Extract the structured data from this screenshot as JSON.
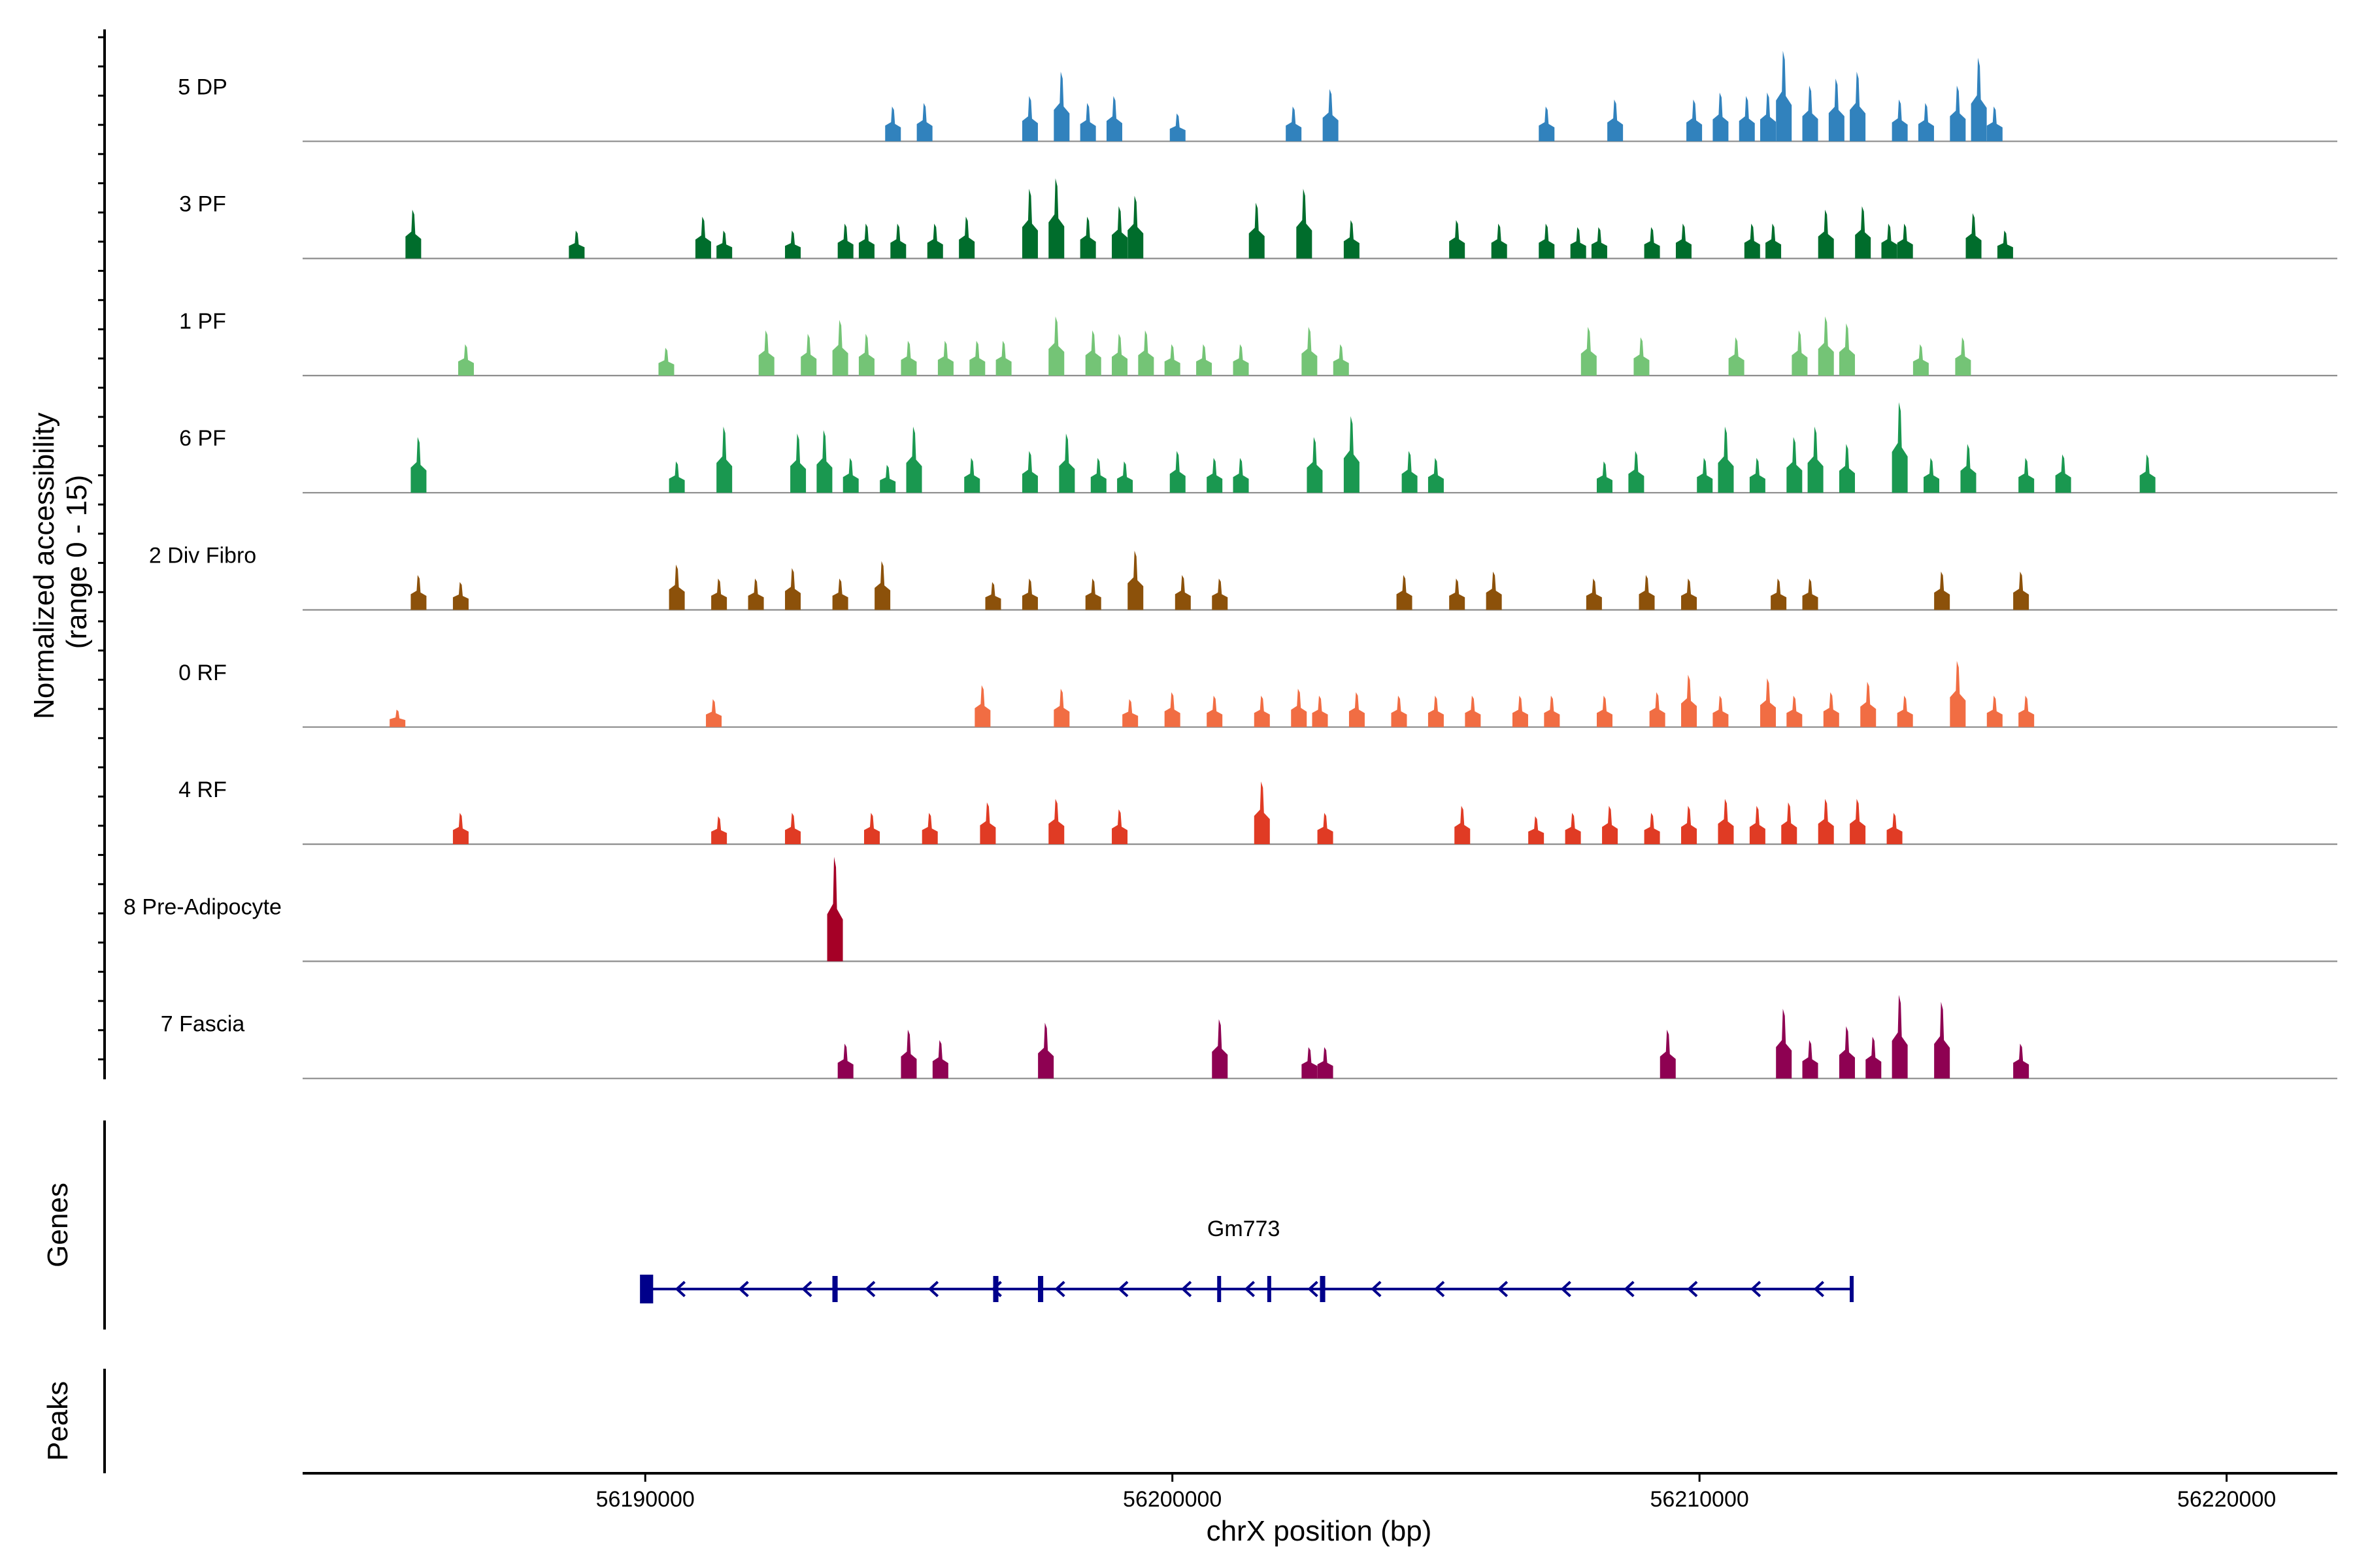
{
  "chart_data": {
    "type": "genome-coverage-tracks",
    "region": {
      "chrom": "chrX",
      "start": 56183500,
      "end": 56222100
    },
    "ylabel_lines": [
      "Normalized accessibility",
      "(range 0 - 15)"
    ],
    "y_range": [
      0,
      15
    ],
    "xlabel": "chrX position (bp)",
    "x_ticks": [
      56190000,
      56200000,
      56210000,
      56220000
    ],
    "x_tick_labels": [
      "56190000",
      "56200000",
      "56210000",
      "56220000"
    ],
    "tracks": [
      {
        "name": "5 DP",
        "color": "#3182bd",
        "peaks": [
          [
            56194700,
            5.0
          ],
          [
            56195300,
            5.5
          ],
          [
            56197300,
            6.5
          ],
          [
            56197900,
            10
          ],
          [
            56198400,
            5.5
          ],
          [
            56198900,
            6.5
          ],
          [
            56200100,
            4.0
          ],
          [
            56202300,
            5.0
          ],
          [
            56203000,
            7.5
          ],
          [
            56207100,
            5.0
          ],
          [
            56208400,
            6.0
          ],
          [
            56209900,
            6.0
          ],
          [
            56210400,
            7.0
          ],
          [
            56210900,
            6.5
          ],
          [
            56211300,
            7.0
          ],
          [
            56211600,
            13.0
          ],
          [
            56212100,
            8.0
          ],
          [
            56212600,
            9.0
          ],
          [
            56213000,
            10.0
          ],
          [
            56213800,
            6.0
          ],
          [
            56214300,
            5.5
          ],
          [
            56214900,
            8.0
          ],
          [
            56215300,
            12.0
          ],
          [
            56215600,
            5.0
          ]
        ]
      },
      {
        "name": "3 PF",
        "color": "#006d2c",
        "peaks": [
          [
            56185600,
            7.0
          ],
          [
            56188700,
            4.0
          ],
          [
            56191100,
            6.0
          ],
          [
            56191500,
            4.0
          ],
          [
            56192800,
            4.0
          ],
          [
            56193800,
            5.0
          ],
          [
            56194200,
            5.0
          ],
          [
            56194800,
            5.0
          ],
          [
            56195500,
            5.0
          ],
          [
            56196100,
            6.0
          ],
          [
            56197300,
            10.0
          ],
          [
            56197800,
            11.5
          ],
          [
            56198400,
            6.0
          ],
          [
            56199000,
            7.5
          ],
          [
            56199300,
            9.0
          ],
          [
            56201600,
            8.0
          ],
          [
            56202500,
            10.0
          ],
          [
            56203400,
            5.5
          ],
          [
            56205400,
            5.5
          ],
          [
            56206200,
            5.0
          ],
          [
            56207100,
            5.0
          ],
          [
            56207700,
            4.5
          ],
          [
            56208100,
            4.5
          ],
          [
            56209100,
            4.5
          ],
          [
            56209700,
            5.0
          ],
          [
            56211000,
            5.0
          ],
          [
            56211400,
            5.0
          ],
          [
            56212400,
            7.0
          ],
          [
            56213100,
            7.5
          ],
          [
            56213600,
            5.0
          ],
          [
            56213900,
            5.0
          ],
          [
            56215200,
            6.5
          ],
          [
            56215800,
            4.0
          ]
        ]
      },
      {
        "name": "1 PF",
        "color": "#74c476",
        "peaks": [
          [
            56186600,
            4.5
          ],
          [
            56190400,
            4.0
          ],
          [
            56192300,
            6.5
          ],
          [
            56193100,
            6.0
          ],
          [
            56193700,
            8.0
          ],
          [
            56194200,
            6.0
          ],
          [
            56195000,
            5.0
          ],
          [
            56195700,
            5.0
          ],
          [
            56196300,
            5.0
          ],
          [
            56196800,
            5.0
          ],
          [
            56197800,
            8.5
          ],
          [
            56198500,
            6.5
          ],
          [
            56199000,
            6.0
          ],
          [
            56199500,
            6.5
          ],
          [
            56200000,
            4.5
          ],
          [
            56200600,
            4.5
          ],
          [
            56201300,
            4.5
          ],
          [
            56202600,
            7.0
          ],
          [
            56203200,
            4.5
          ],
          [
            56207900,
            7.0
          ],
          [
            56208900,
            5.5
          ],
          [
            56210700,
            5.5
          ],
          [
            56211900,
            6.5
          ],
          [
            56212400,
            8.5
          ],
          [
            56212800,
            7.5
          ],
          [
            56214200,
            4.5
          ],
          [
            56215000,
            5.5
          ]
        ]
      },
      {
        "name": "6 PF",
        "color": "#1a9850",
        "peaks": [
          [
            56185700,
            8.0
          ],
          [
            56190600,
            4.5
          ],
          [
            56191500,
            9.5
          ],
          [
            56192900,
            8.5
          ],
          [
            56193400,
            9.0
          ],
          [
            56193900,
            5.0
          ],
          [
            56194600,
            4.0
          ],
          [
            56195100,
            9.5
          ],
          [
            56196200,
            5.0
          ],
          [
            56197300,
            6.0
          ],
          [
            56198000,
            8.5
          ],
          [
            56198600,
            5.0
          ],
          [
            56199100,
            4.5
          ],
          [
            56200100,
            6.0
          ],
          [
            56200800,
            5.0
          ],
          [
            56201300,
            5.0
          ],
          [
            56202700,
            8.0
          ],
          [
            56203400,
            11.0
          ],
          [
            56204500,
            6.0
          ],
          [
            56205000,
            5.0
          ],
          [
            56208200,
            4.5
          ],
          [
            56208800,
            6.0
          ],
          [
            56210100,
            5.0
          ],
          [
            56210500,
            9.5
          ],
          [
            56211100,
            5.0
          ],
          [
            56211800,
            8.0
          ],
          [
            56212200,
            9.5
          ],
          [
            56212800,
            7.0
          ],
          [
            56213800,
            13.0
          ],
          [
            56214400,
            5.0
          ],
          [
            56215100,
            7.0
          ],
          [
            56216200,
            5.0
          ],
          [
            56216900,
            5.5
          ],
          [
            56218500,
            5.5
          ]
        ]
      },
      {
        "name": "2 Div Fibro",
        "color": "#8c510a",
        "peaks": [
          [
            56185700,
            5.0
          ],
          [
            56186500,
            4.0
          ],
          [
            56190600,
            6.5
          ],
          [
            56191400,
            4.5
          ],
          [
            56192100,
            4.5
          ],
          [
            56192800,
            6.0
          ],
          [
            56193700,
            4.5
          ],
          [
            56194500,
            7.0
          ],
          [
            56196600,
            4.0
          ],
          [
            56197300,
            4.5
          ],
          [
            56198500,
            4.5
          ],
          [
            56199300,
            8.5
          ],
          [
            56200200,
            5.0
          ],
          [
            56200900,
            4.5
          ],
          [
            56204400,
            5.0
          ],
          [
            56205400,
            4.5
          ],
          [
            56206100,
            5.5
          ],
          [
            56208000,
            4.5
          ],
          [
            56209000,
            5.0
          ],
          [
            56209800,
            4.5
          ],
          [
            56211500,
            4.5
          ],
          [
            56212100,
            4.5
          ],
          [
            56214600,
            5.5
          ],
          [
            56216100,
            5.5
          ]
        ]
      },
      {
        "name": "0 RF",
        "color": "#f16d43",
        "peaks": [
          [
            56185300,
            2.5
          ],
          [
            56191300,
            4.0
          ],
          [
            56196400,
            6.0
          ],
          [
            56197900,
            5.5
          ],
          [
            56199200,
            4.0
          ],
          [
            56200000,
            5.0
          ],
          [
            56200800,
            4.5
          ],
          [
            56201700,
            4.5
          ],
          [
            56202400,
            5.5
          ],
          [
            56202800,
            4.5
          ],
          [
            56203500,
            5.0
          ],
          [
            56204300,
            4.5
          ],
          [
            56205000,
            4.5
          ],
          [
            56205700,
            4.5
          ],
          [
            56206600,
            4.5
          ],
          [
            56207200,
            4.5
          ],
          [
            56208200,
            4.5
          ],
          [
            56209200,
            5.0
          ],
          [
            56209800,
            7.5
          ],
          [
            56210400,
            4.5
          ],
          [
            56211300,
            7.0
          ],
          [
            56211800,
            4.5
          ],
          [
            56212500,
            5.0
          ],
          [
            56213200,
            6.5
          ],
          [
            56213900,
            4.5
          ],
          [
            56214900,
            9.5
          ],
          [
            56215600,
            4.5
          ],
          [
            56216200,
            4.5
          ]
        ]
      },
      {
        "name": "4 RF",
        "color": "#e03b24",
        "peaks": [
          [
            56186500,
            4.5
          ],
          [
            56191400,
            4.0
          ],
          [
            56192800,
            4.5
          ],
          [
            56194300,
            4.5
          ],
          [
            56195400,
            4.5
          ],
          [
            56196500,
            6.0
          ],
          [
            56197800,
            6.5
          ],
          [
            56199000,
            5.0
          ],
          [
            56201700,
            9.0
          ],
          [
            56202900,
            4.5
          ],
          [
            56205500,
            5.5
          ],
          [
            56206900,
            4.0
          ],
          [
            56207600,
            4.5
          ],
          [
            56208300,
            5.5
          ],
          [
            56209100,
            4.5
          ],
          [
            56209800,
            5.5
          ],
          [
            56210500,
            6.5
          ],
          [
            56211100,
            5.5
          ],
          [
            56211700,
            6.0
          ],
          [
            56212400,
            6.5
          ],
          [
            56213000,
            6.5
          ],
          [
            56213700,
            4.5
          ]
        ]
      },
      {
        "name": "8 Pre-Adipocyte",
        "color": "#a50026",
        "peaks": [
          [
            56193600,
            15.0
          ]
        ]
      },
      {
        "name": "7 Fascia",
        "color": "#8e0152",
        "peaks": [
          [
            56193800,
            5.0
          ],
          [
            56195000,
            7.0
          ],
          [
            56195600,
            5.5
          ],
          [
            56197600,
            8.0
          ],
          [
            56200900,
            8.5
          ],
          [
            56202600,
            4.5
          ],
          [
            56202900,
            4.5
          ],
          [
            56209400,
            7.0
          ],
          [
            56211600,
            10.0
          ],
          [
            56212100,
            5.5
          ],
          [
            56212800,
            7.5
          ],
          [
            56213300,
            6.0
          ],
          [
            56213800,
            12.0
          ],
          [
            56214600,
            11.0
          ],
          [
            56216100,
            5.0
          ]
        ]
      }
    ],
    "genes_label": "Genes",
    "peaks_label": "Peaks",
    "gene": {
      "name": "Gm773",
      "start": 56190000,
      "end": 56212900,
      "strand": "-",
      "exons": [
        [
          56189900,
          56190150
        ],
        [
          56193550,
          56193650
        ],
        [
          56196600,
          56196700
        ],
        [
          56197450,
          56197550
        ],
        [
          56200850,
          56200880
        ],
        [
          56201800,
          56201860
        ],
        [
          56202800,
          56202900
        ],
        [
          56212850,
          56212900
        ]
      ]
    }
  }
}
